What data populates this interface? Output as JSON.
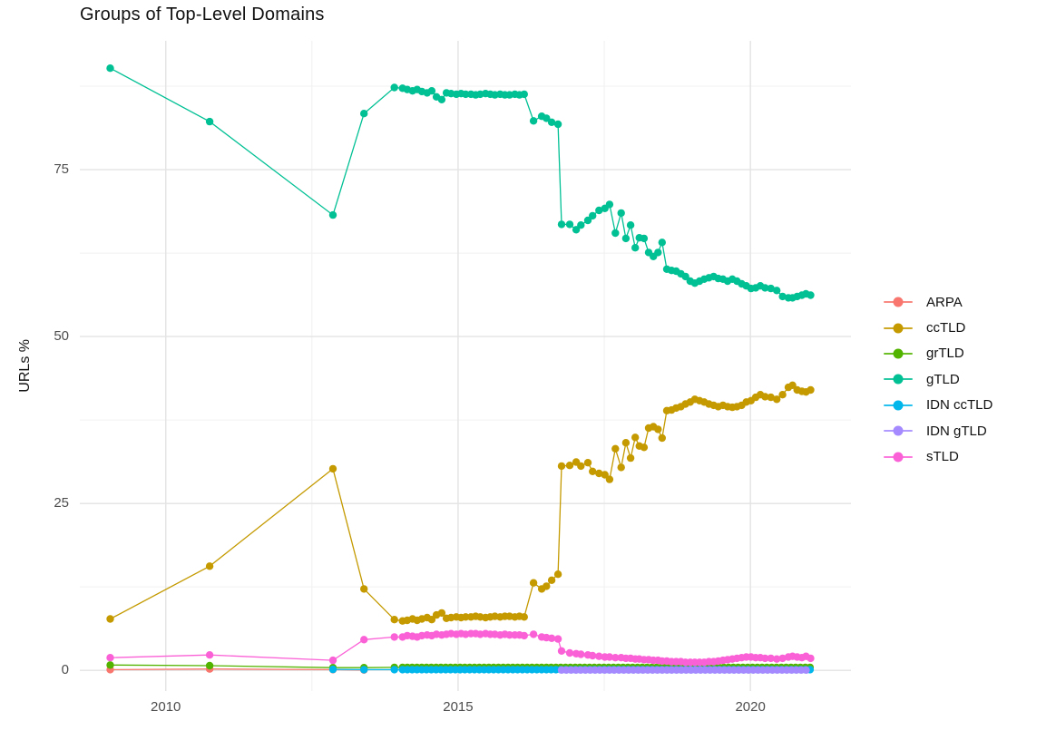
{
  "title": "Groups of Top-Level Domains",
  "y_axis": {
    "title": "URLs %",
    "ticks": [
      "0",
      "25",
      "50",
      "75"
    ],
    "tick_values": [
      0,
      25,
      50,
      75
    ],
    "minor": [
      12.5,
      37.5,
      62.5,
      87.5
    ]
  },
  "x_axis": {
    "ticks": [
      "2010",
      "2015",
      "2020"
    ],
    "tick_values": [
      2010,
      2015,
      2020
    ],
    "minor": [
      2012.5,
      2017.5
    ]
  },
  "legend": {
    "items": [
      {
        "label": "ARPA",
        "color": "#F8766D"
      },
      {
        "label": "ccTLD",
        "color": "#C49A00"
      },
      {
        "label": "grTLD",
        "color": "#53B400"
      },
      {
        "label": "gTLD",
        "color": "#00C094"
      },
      {
        "label": "IDN ccTLD",
        "color": "#00B6EB"
      },
      {
        "label": "IDN gTLD",
        "color": "#A58AFF"
      },
      {
        "label": "sTLD",
        "color": "#FB61D7"
      }
    ]
  },
  "chart_data": {
    "type": "line",
    "title": "Groups of Top-Level Domains",
    "xlabel": "",
    "ylabel": "URLs %",
    "x_domain": [
      2008.53,
      2021.72
    ],
    "y_domain": [
      -3.1,
      94.3
    ],
    "grid": true,
    "legend_position": "right",
    "series": [
      {
        "name": "ARPA",
        "color": "#F8766D",
        "points": [
          [
            2009.05,
            0.1
          ],
          [
            2010.75,
            0.2
          ],
          [
            2012.86,
            0.1
          ],
          [
            2013.39,
            0.05
          ]
        ]
      },
      {
        "name": "ccTLD",
        "color": "#C49A00",
        "points": [
          [
            2009.05,
            7.7
          ],
          [
            2010.75,
            15.6
          ],
          [
            2012.86,
            30.2
          ],
          [
            2013.39,
            12.2
          ],
          [
            2013.91,
            7.6
          ],
          [
            2014.05,
            7.4
          ],
          [
            2014.13,
            7.5
          ],
          [
            2014.22,
            7.7
          ],
          [
            2014.3,
            7.5
          ],
          [
            2014.38,
            7.7
          ],
          [
            2014.47,
            7.9
          ],
          [
            2014.55,
            7.6
          ],
          [
            2014.63,
            8.3
          ],
          [
            2014.72,
            8.6
          ],
          [
            2014.8,
            7.8
          ],
          [
            2014.88,
            7.9
          ],
          [
            2014.97,
            8.0
          ],
          [
            2015.05,
            7.9
          ],
          [
            2015.13,
            8.0
          ],
          [
            2015.22,
            8.0
          ],
          [
            2015.3,
            8.1
          ],
          [
            2015.38,
            8.0
          ],
          [
            2015.47,
            7.9
          ],
          [
            2015.55,
            8.0
          ],
          [
            2015.63,
            8.1
          ],
          [
            2015.72,
            8.0
          ],
          [
            2015.8,
            8.1
          ],
          [
            2015.88,
            8.1
          ],
          [
            2015.97,
            8.0
          ],
          [
            2016.05,
            8.1
          ],
          [
            2016.13,
            8.0
          ],
          [
            2016.29,
            13.1
          ],
          [
            2016.43,
            12.2
          ],
          [
            2016.51,
            12.6
          ],
          [
            2016.6,
            13.5
          ],
          [
            2016.71,
            14.4
          ],
          [
            2016.77,
            30.6
          ],
          [
            2016.91,
            30.7
          ],
          [
            2017.02,
            31.2
          ],
          [
            2017.1,
            30.6
          ],
          [
            2017.22,
            31.1
          ],
          [
            2017.3,
            29.8
          ],
          [
            2017.41,
            29.5
          ],
          [
            2017.51,
            29.3
          ],
          [
            2017.59,
            28.6
          ],
          [
            2017.69,
            33.2
          ],
          [
            2017.79,
            30.4
          ],
          [
            2017.87,
            34.1
          ],
          [
            2017.95,
            31.8
          ],
          [
            2018.03,
            34.9
          ],
          [
            2018.1,
            33.6
          ],
          [
            2018.18,
            33.4
          ],
          [
            2018.26,
            36.3
          ],
          [
            2018.34,
            36.5
          ],
          [
            2018.42,
            36.1
          ],
          [
            2018.49,
            34.8
          ],
          [
            2018.57,
            38.9
          ],
          [
            2018.65,
            39.0
          ],
          [
            2018.73,
            39.3
          ],
          [
            2018.81,
            39.5
          ],
          [
            2018.89,
            39.9
          ],
          [
            2018.97,
            40.2
          ],
          [
            2019.05,
            40.6
          ],
          [
            2019.13,
            40.4
          ],
          [
            2019.21,
            40.2
          ],
          [
            2019.29,
            39.9
          ],
          [
            2019.37,
            39.7
          ],
          [
            2019.45,
            39.5
          ],
          [
            2019.53,
            39.7
          ],
          [
            2019.61,
            39.5
          ],
          [
            2019.69,
            39.4
          ],
          [
            2019.77,
            39.5
          ],
          [
            2019.85,
            39.7
          ],
          [
            2019.93,
            40.2
          ],
          [
            2020.01,
            40.4
          ],
          [
            2020.09,
            40.9
          ],
          [
            2020.17,
            41.3
          ],
          [
            2020.25,
            41.0
          ],
          [
            2020.35,
            40.9
          ],
          [
            2020.45,
            40.6
          ],
          [
            2020.55,
            41.3
          ],
          [
            2020.65,
            42.4
          ],
          [
            2020.72,
            42.7
          ],
          [
            2020.8,
            42.0
          ],
          [
            2020.88,
            41.8
          ],
          [
            2020.95,
            41.7
          ],
          [
            2021.03,
            42.0
          ]
        ]
      },
      {
        "name": "grTLD",
        "color": "#53B400",
        "points": [
          [
            2009.05,
            0.8
          ],
          [
            2010.75,
            0.7
          ],
          [
            2012.86,
            0.4
          ],
          [
            2013.39,
            0.4
          ],
          [
            2013.91,
            0.45
          ]
        ],
        "flat": {
          "x0": 2014.05,
          "x1": 2021.03,
          "step": 0.082,
          "y": 0.45
        }
      },
      {
        "name": "gTLD",
        "color": "#00C094",
        "points": [
          [
            2009.05,
            90.2
          ],
          [
            2010.75,
            82.2
          ],
          [
            2012.86,
            68.2
          ],
          [
            2013.39,
            83.4
          ],
          [
            2013.91,
            87.3
          ],
          [
            2014.05,
            87.2
          ],
          [
            2014.13,
            87.0
          ],
          [
            2014.22,
            86.8
          ],
          [
            2014.3,
            87.0
          ],
          [
            2014.38,
            86.7
          ],
          [
            2014.47,
            86.5
          ],
          [
            2014.55,
            86.8
          ],
          [
            2014.63,
            85.9
          ],
          [
            2014.72,
            85.5
          ],
          [
            2014.8,
            86.5
          ],
          [
            2014.88,
            86.4
          ],
          [
            2014.97,
            86.3
          ],
          [
            2015.05,
            86.4
          ],
          [
            2015.13,
            86.3
          ],
          [
            2015.22,
            86.3
          ],
          [
            2015.3,
            86.2
          ],
          [
            2015.38,
            86.3
          ],
          [
            2015.47,
            86.4
          ],
          [
            2015.55,
            86.3
          ],
          [
            2015.63,
            86.2
          ],
          [
            2015.72,
            86.3
          ],
          [
            2015.8,
            86.2
          ],
          [
            2015.88,
            86.2
          ],
          [
            2015.97,
            86.3
          ],
          [
            2016.05,
            86.2
          ],
          [
            2016.13,
            86.3
          ],
          [
            2016.29,
            82.3
          ],
          [
            2016.43,
            83.0
          ],
          [
            2016.51,
            82.7
          ],
          [
            2016.6,
            82.1
          ],
          [
            2016.71,
            81.8
          ],
          [
            2016.77,
            66.8
          ],
          [
            2016.91,
            66.8
          ],
          [
            2017.02,
            66.0
          ],
          [
            2017.1,
            66.7
          ],
          [
            2017.22,
            67.4
          ],
          [
            2017.3,
            68.1
          ],
          [
            2017.41,
            68.9
          ],
          [
            2017.51,
            69.2
          ],
          [
            2017.59,
            69.8
          ],
          [
            2017.69,
            65.5
          ],
          [
            2017.79,
            68.5
          ],
          [
            2017.87,
            64.7
          ],
          [
            2017.95,
            66.7
          ],
          [
            2018.03,
            63.3
          ],
          [
            2018.1,
            64.8
          ],
          [
            2018.18,
            64.7
          ],
          [
            2018.26,
            62.6
          ],
          [
            2018.34,
            62.0
          ],
          [
            2018.42,
            62.6
          ],
          [
            2018.49,
            64.1
          ],
          [
            2018.57,
            60.1
          ],
          [
            2018.65,
            59.9
          ],
          [
            2018.73,
            59.8
          ],
          [
            2018.81,
            59.4
          ],
          [
            2018.89,
            59.0
          ],
          [
            2018.97,
            58.3
          ],
          [
            2019.05,
            58.0
          ],
          [
            2019.13,
            58.3
          ],
          [
            2019.21,
            58.6
          ],
          [
            2019.29,
            58.8
          ],
          [
            2019.37,
            59.0
          ],
          [
            2019.45,
            58.7
          ],
          [
            2019.53,
            58.6
          ],
          [
            2019.61,
            58.3
          ],
          [
            2019.69,
            58.6
          ],
          [
            2019.77,
            58.3
          ],
          [
            2019.85,
            57.9
          ],
          [
            2019.93,
            57.6
          ],
          [
            2020.01,
            57.2
          ],
          [
            2020.09,
            57.3
          ],
          [
            2020.17,
            57.6
          ],
          [
            2020.25,
            57.3
          ],
          [
            2020.35,
            57.2
          ],
          [
            2020.45,
            56.9
          ],
          [
            2020.55,
            56.0
          ],
          [
            2020.65,
            55.8
          ],
          [
            2020.72,
            55.8
          ],
          [
            2020.8,
            56.0
          ],
          [
            2020.88,
            56.2
          ],
          [
            2020.95,
            56.4
          ],
          [
            2021.03,
            56.2
          ]
        ]
      },
      {
        "name": "IDN ccTLD",
        "color": "#00B6EB",
        "points": [
          [
            2012.86,
            0.15
          ],
          [
            2013.39,
            0.1
          ],
          [
            2013.91,
            0.1
          ]
        ],
        "flat": {
          "x0": 2014.05,
          "x1": 2021.03,
          "step": 0.082,
          "y": 0.1
        }
      },
      {
        "name": "IDN gTLD",
        "color": "#A58AFF",
        "flat": {
          "x0": 2016.77,
          "x1": 2021.03,
          "step": 0.082,
          "y": 0.05
        }
      },
      {
        "name": "sTLD",
        "color": "#FB61D7",
        "points": [
          [
            2009.05,
            1.9
          ],
          [
            2010.75,
            2.3
          ],
          [
            2012.86,
            1.5
          ],
          [
            2013.39,
            4.6
          ],
          [
            2013.91,
            5.0
          ],
          [
            2014.05,
            5.0
          ],
          [
            2014.13,
            5.2
          ],
          [
            2014.22,
            5.1
          ],
          [
            2014.3,
            5.0
          ],
          [
            2014.38,
            5.2
          ],
          [
            2014.47,
            5.3
          ],
          [
            2014.55,
            5.2
          ],
          [
            2014.63,
            5.4
          ],
          [
            2014.72,
            5.3
          ],
          [
            2014.8,
            5.4
          ],
          [
            2014.88,
            5.5
          ],
          [
            2014.97,
            5.4
          ],
          [
            2015.05,
            5.5
          ],
          [
            2015.13,
            5.4
          ],
          [
            2015.22,
            5.5
          ],
          [
            2015.3,
            5.5
          ],
          [
            2015.38,
            5.4
          ],
          [
            2015.47,
            5.5
          ],
          [
            2015.55,
            5.4
          ],
          [
            2015.63,
            5.4
          ],
          [
            2015.72,
            5.3
          ],
          [
            2015.8,
            5.4
          ],
          [
            2015.88,
            5.3
          ],
          [
            2015.97,
            5.3
          ],
          [
            2016.05,
            5.3
          ],
          [
            2016.13,
            5.2
          ],
          [
            2016.29,
            5.4
          ],
          [
            2016.43,
            5.0
          ],
          [
            2016.51,
            4.9
          ],
          [
            2016.6,
            4.8
          ],
          [
            2016.71,
            4.7
          ],
          [
            2016.77,
            2.9
          ],
          [
            2016.91,
            2.6
          ],
          [
            2017.02,
            2.5
          ],
          [
            2017.1,
            2.4
          ],
          [
            2017.22,
            2.3
          ],
          [
            2017.3,
            2.2
          ],
          [
            2017.41,
            2.1
          ],
          [
            2017.51,
            2.0
          ],
          [
            2017.59,
            2.0
          ],
          [
            2017.69,
            1.9
          ],
          [
            2017.79,
            1.9
          ],
          [
            2017.87,
            1.8
          ],
          [
            2017.95,
            1.8
          ],
          [
            2018.03,
            1.7
          ],
          [
            2018.1,
            1.7
          ],
          [
            2018.18,
            1.6
          ],
          [
            2018.26,
            1.6
          ],
          [
            2018.34,
            1.5
          ],
          [
            2018.42,
            1.5
          ],
          [
            2018.49,
            1.4
          ],
          [
            2018.57,
            1.4
          ],
          [
            2018.65,
            1.3
          ],
          [
            2018.73,
            1.3
          ],
          [
            2018.81,
            1.3
          ],
          [
            2018.89,
            1.2
          ],
          [
            2018.97,
            1.2
          ],
          [
            2019.05,
            1.2
          ],
          [
            2019.13,
            1.2
          ],
          [
            2019.21,
            1.2
          ],
          [
            2019.29,
            1.3
          ],
          [
            2019.37,
            1.3
          ],
          [
            2019.45,
            1.4
          ],
          [
            2019.53,
            1.5
          ],
          [
            2019.61,
            1.6
          ],
          [
            2019.69,
            1.7
          ],
          [
            2019.77,
            1.8
          ],
          [
            2019.85,
            1.9
          ],
          [
            2019.93,
            2.0
          ],
          [
            2020.01,
            2.0
          ],
          [
            2020.09,
            1.9
          ],
          [
            2020.17,
            1.9
          ],
          [
            2020.25,
            1.8
          ],
          [
            2020.35,
            1.8
          ],
          [
            2020.45,
            1.7
          ],
          [
            2020.55,
            1.8
          ],
          [
            2020.65,
            2.0
          ],
          [
            2020.72,
            2.1
          ],
          [
            2020.8,
            2.0
          ],
          [
            2020.88,
            1.9
          ],
          [
            2020.95,
            2.1
          ],
          [
            2021.03,
            1.8
          ]
        ]
      }
    ]
  }
}
